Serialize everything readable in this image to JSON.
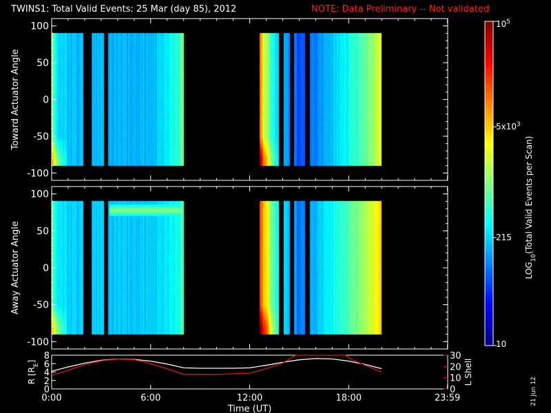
{
  "header": {
    "title": "TWINS1: Total Valid Events: 25 Mar (day  85), 2012",
    "note": "NOTE: Data Preliminary -- Not validated"
  },
  "footer": {
    "date_stamp": "21 Jun 12"
  },
  "colors": {
    "note": "#ff1e1e",
    "lshell": "#e01010",
    "radius": "#ffffff",
    "no_data": "#000000"
  },
  "chart_data": [
    {
      "type": "heatmap",
      "panel": "toward",
      "ylabel": "Toward Actuator Angle",
      "ylim": [
        -110,
        110
      ],
      "yticks": [
        100,
        50,
        0,
        -50,
        -100
      ],
      "angle_range": [
        -90,
        90
      ],
      "xlim": [
        0,
        24
      ],
      "data_intervals_hours": [
        [
          0,
          1.93
        ],
        [
          2.4,
          3.18
        ],
        [
          3.42,
          8.02
        ],
        [
          12.6,
          13.78
        ],
        [
          14.05,
          14.45
        ],
        [
          14.68,
          15.38
        ],
        [
          15.67,
          20.0
        ]
      ],
      "column_level_profile": [
        {
          "t": 0.0,
          "level": 0.55
        },
        {
          "t": 0.15,
          "level": 0.42
        },
        {
          "t": 0.5,
          "level": 0.33
        },
        {
          "t": 2.5,
          "level": 0.3
        },
        {
          "t": 6.0,
          "level": 0.3
        },
        {
          "t": 7.6,
          "level": 0.4
        },
        {
          "t": 8.0,
          "level": 0.5
        },
        {
          "t": 12.6,
          "level": 0.75
        },
        {
          "t": 12.9,
          "level": 0.58
        },
        {
          "t": 13.5,
          "level": 0.36
        },
        {
          "t": 14.5,
          "level": 0.24
        },
        {
          "t": 15.0,
          "level": 0.2
        },
        {
          "t": 16.5,
          "level": 0.28
        },
        {
          "t": 18.0,
          "level": 0.38
        },
        {
          "t": 19.0,
          "level": 0.48
        },
        {
          "t": 20.0,
          "level": 0.6
        }
      ]
    },
    {
      "type": "heatmap",
      "panel": "away",
      "ylabel": "Away Actuator Angle",
      "ylim": [
        -110,
        110
      ],
      "yticks": [
        100,
        50,
        0,
        -50,
        -100
      ],
      "angle_range": [
        -90,
        90
      ],
      "xlim": [
        0,
        24
      ],
      "data_intervals_hours": [
        [
          0,
          1.93
        ],
        [
          2.4,
          3.18
        ],
        [
          3.42,
          8.02
        ],
        [
          12.6,
          13.78
        ],
        [
          14.05,
          14.45
        ],
        [
          14.68,
          15.38
        ],
        [
          15.67,
          20.0
        ]
      ],
      "high_angle_band": {
        "angle": 78,
        "t_start": 3.5,
        "t_end": 7.9,
        "level": 0.52
      },
      "column_level_profile": [
        {
          "t": 0.0,
          "level": 0.5
        },
        {
          "t": 0.2,
          "level": 0.4
        },
        {
          "t": 0.6,
          "level": 0.34
        },
        {
          "t": 3.0,
          "level": 0.32
        },
        {
          "t": 6.0,
          "level": 0.32
        },
        {
          "t": 7.6,
          "level": 0.38
        },
        {
          "t": 8.0,
          "level": 0.45
        },
        {
          "t": 12.6,
          "level": 0.8
        },
        {
          "t": 12.9,
          "level": 0.68
        },
        {
          "t": 13.5,
          "level": 0.42
        },
        {
          "t": 14.5,
          "level": 0.28
        },
        {
          "t": 15.0,
          "level": 0.24
        },
        {
          "t": 16.5,
          "level": 0.34
        },
        {
          "t": 18.0,
          "level": 0.44
        },
        {
          "t": 19.0,
          "level": 0.55
        },
        {
          "t": 20.0,
          "level": 0.66
        }
      ]
    },
    {
      "type": "line",
      "panel": "orbit",
      "ylabel": "R [RE]",
      "ylabel_main": "R [R",
      "ylabel_sub": "E",
      "ylabel_end": "]",
      "y2label": "L Shell",
      "ylim": [
        0,
        8
      ],
      "yticks": [
        0,
        2,
        4,
        6,
        8
      ],
      "y2lim": [
        0,
        30
      ],
      "y2ticks": [
        0,
        10,
        20,
        30
      ],
      "xlim": [
        0,
        24
      ],
      "xticks": [
        {
          "t": 0,
          "label": "0:00"
        },
        {
          "t": 6,
          "label": "6:00"
        },
        {
          "t": 12,
          "label": "12:00"
        },
        {
          "t": 18,
          "label": "18:00"
        },
        {
          "t": 23.983,
          "label": "23:59"
        }
      ],
      "xlabel": "Time (UT)",
      "series": [
        {
          "key": "r",
          "axis": "left",
          "x": [
            0,
            1,
            2,
            3,
            4,
            5,
            6,
            7,
            8,
            9,
            10,
            11,
            12,
            13,
            14,
            15,
            16,
            17,
            18,
            19,
            20
          ],
          "values": [
            4.2,
            5.2,
            6.1,
            6.8,
            7.1,
            7.0,
            6.6,
            5.9,
            5.0,
            4.9,
            4.9,
            4.9,
            5.0,
            5.6,
            6.3,
            6.9,
            7.2,
            7.1,
            6.6,
            5.8,
            4.8
          ]
        },
        {
          "key": "lshell",
          "axis": "right",
          "x": [
            0,
            1,
            2,
            3,
            4,
            5,
            6,
            7,
            8,
            9,
            10,
            11,
            12,
            13,
            14,
            14.8,
            17.8,
            18.2,
            19,
            20
          ],
          "values": [
            12,
            16.5,
            21.5,
            25,
            26.5,
            26,
            22.5,
            18,
            13,
            13,
            13,
            13.5,
            14,
            18,
            23,
            30,
            30,
            26,
            21,
            15
          ]
        }
      ]
    },
    {
      "type": "heatmap",
      "panel": "colorbar",
      "label_main": "LOG",
      "label_sub": "10",
      "label_end": "(Total Valid Events per Scan)",
      "scale": "log",
      "range": [
        10,
        100000
      ],
      "tick_labels": [
        {
          "value": 100000,
          "label": "10",
          "sup": "5"
        },
        {
          "value": 5000,
          "label": "5x10",
          "sup": "3"
        },
        {
          "value": 215,
          "label": "215",
          "sup": ""
        },
        {
          "value": 10,
          "label": "10",
          "sup": ""
        }
      ]
    }
  ]
}
